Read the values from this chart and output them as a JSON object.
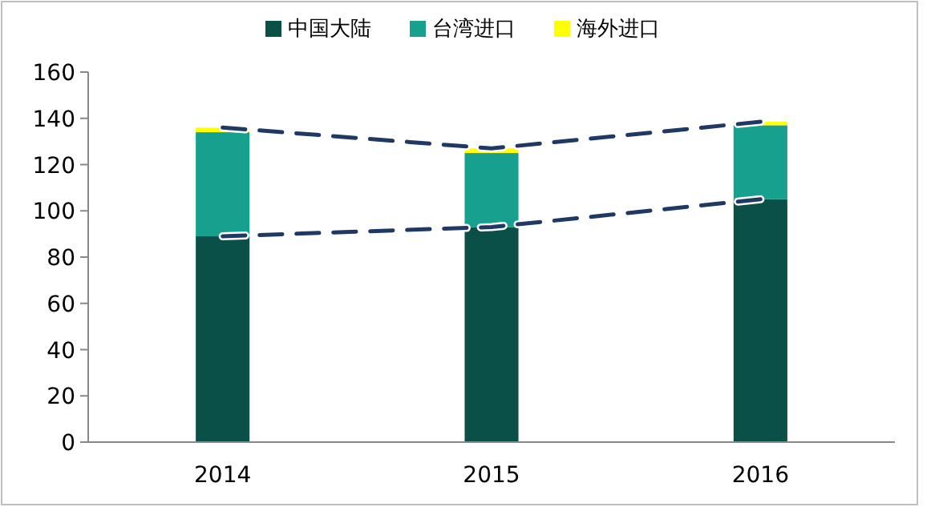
{
  "chart_data": {
    "type": "bar",
    "stacked": true,
    "categories": [
      "2014",
      "2015",
      "2016"
    ],
    "series": [
      {
        "name": "中国大陆",
        "color": "#0b5048",
        "values": [
          89,
          93,
          105
        ]
      },
      {
        "name": "台湾进口",
        "color": "#16a08e",
        "values": [
          45,
          32,
          32
        ]
      },
      {
        "name": "海外进口",
        "color": "#ffff00",
        "values": [
          2,
          2,
          1.5
        ]
      },
      {
        "type": "line",
        "color": "#1f3864",
        "line_style": "dashed",
        "values": [
          89,
          93,
          105
        ]
      },
      {
        "type": "line",
        "color": "#1f3864",
        "line_style": "dashed",
        "values": [
          136,
          127,
          138.5
        ]
      }
    ],
    "ylim": [
      0,
      160
    ],
    "yticks": [
      0,
      20,
      40,
      60,
      80,
      100,
      120,
      140,
      160
    ],
    "legend": "top",
    "grid": false
  }
}
